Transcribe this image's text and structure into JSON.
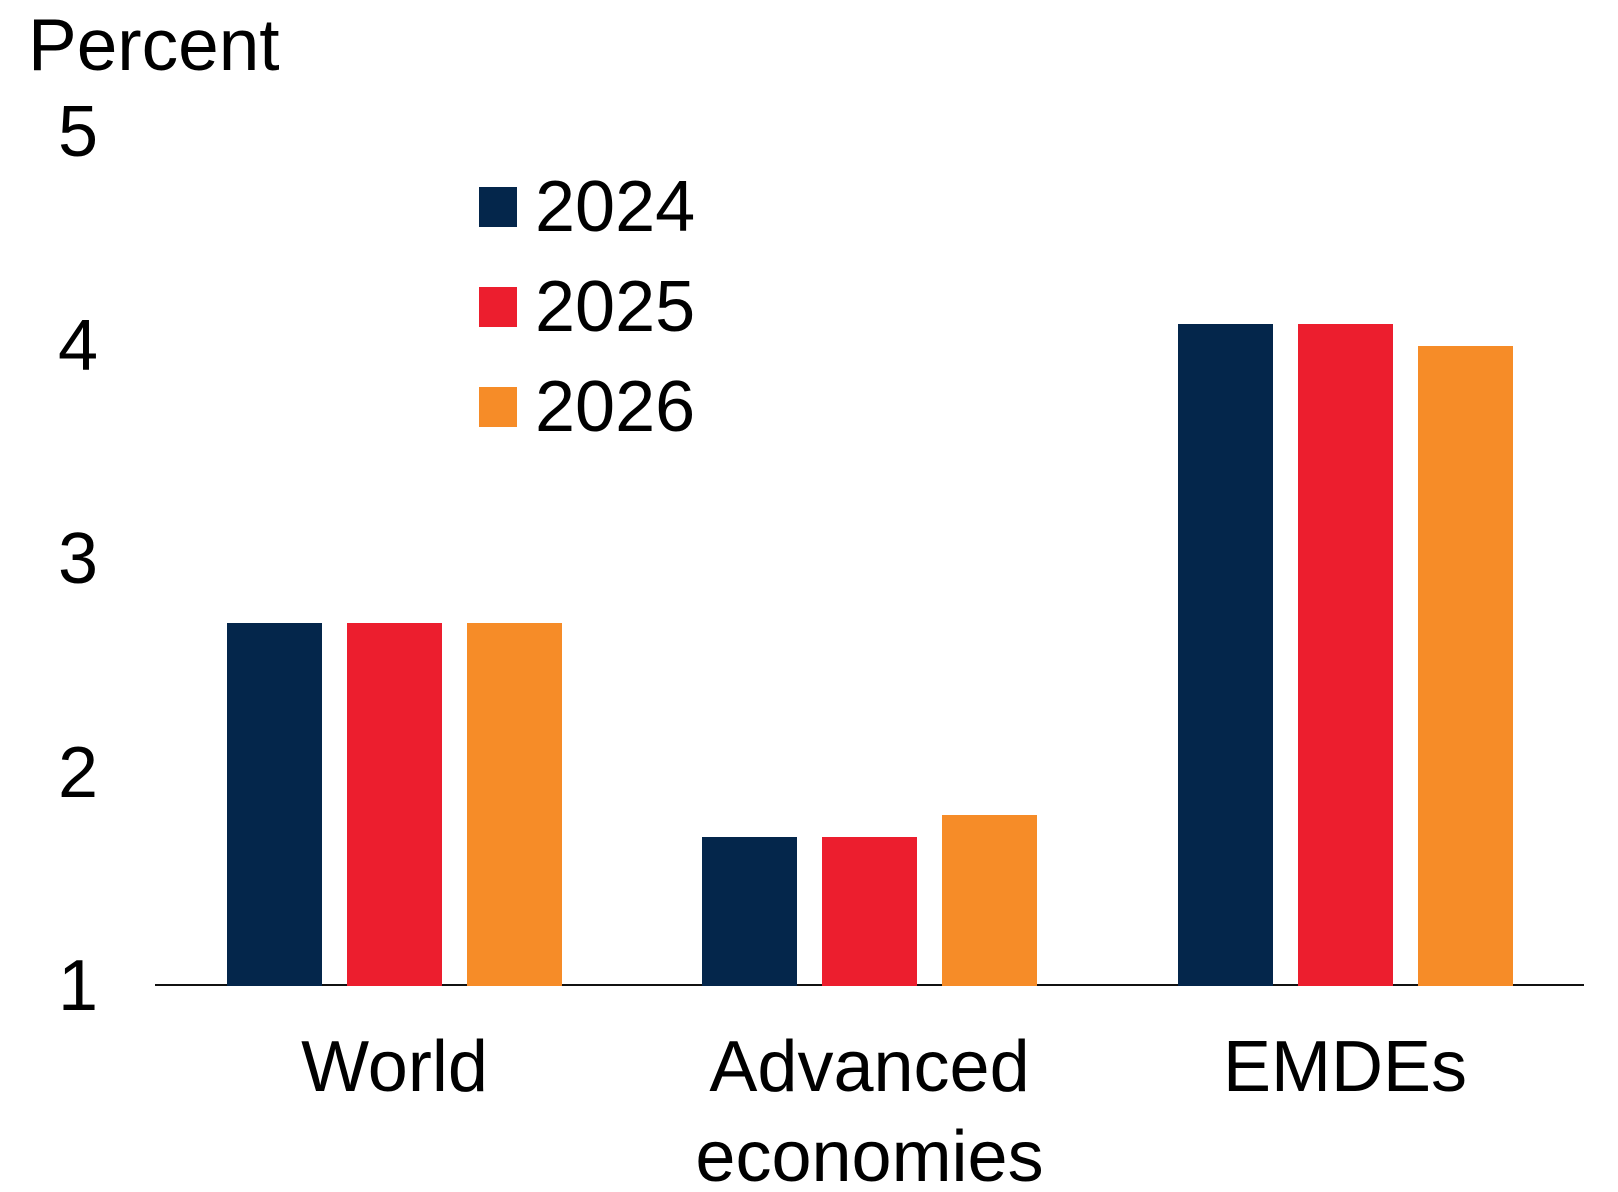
{
  "chart_data": {
    "type": "bar",
    "title": "",
    "ylabel": "Percent",
    "xlabel": "",
    "categories": [
      "World",
      "Advanced economies",
      "EMDEs"
    ],
    "series": [
      {
        "name": "2024",
        "color": "#04264B",
        "values": [
          2.7,
          1.7,
          4.1
        ]
      },
      {
        "name": "2025",
        "color": "#EC1E2E",
        "values": [
          2.7,
          1.7,
          4.1
        ]
      },
      {
        "name": "2026",
        "color": "#F68C28",
        "values": [
          2.7,
          1.8,
          4.0
        ]
      }
    ],
    "ylim": [
      1,
      5
    ],
    "yticks": [
      1,
      2,
      3,
      4,
      5
    ],
    "grid": false,
    "legend_position": "upper-left-inside",
    "axis_line_color": "#111111",
    "text_color": "#000000"
  }
}
